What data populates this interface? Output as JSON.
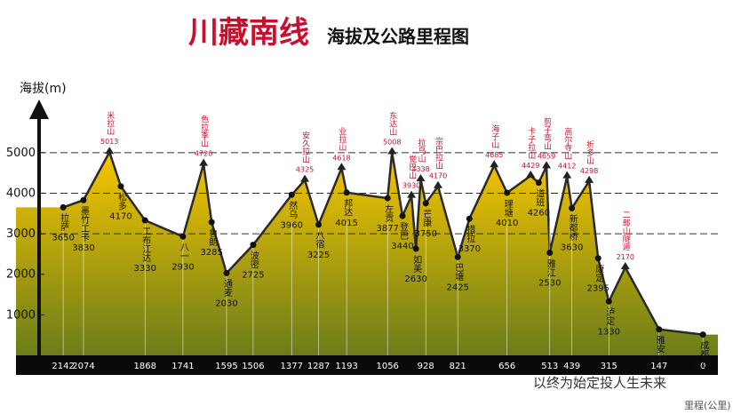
{
  "chart_data": {
    "type": "area",
    "title": "川藏南线",
    "subtitle": "海拔及公路里程图",
    "y_label": "海拔(m)",
    "x_label": "里程(公里)",
    "watermark": "以终为始定投人生未来",
    "ylim": [
      0,
      5500
    ],
    "yticks": [
      1000,
      2000,
      3000,
      4000,
      5000
    ],
    "grid_values": [
      3000,
      4000,
      5000
    ],
    "xlim": [
      2300,
      -50
    ],
    "xticks": [
      2142,
      2074,
      1868,
      1741,
      1595,
      1506,
      1377,
      1287,
      1193,
      1056,
      928,
      821,
      656,
      513,
      439,
      315,
      147,
      0
    ],
    "fill_top": "#f7c600",
    "fill_bottom": "#6b7d1a",
    "peak_color": "#c8102e",
    "labels": [
      "拉萨",
      "墨竹工卡",
      "米拉山",
      "松多",
      "工布江达",
      "八一",
      "色拉季山",
      "鲁朗",
      "通麦",
      "波密",
      "然乌",
      "安久拉山",
      "八宿",
      "业拉山",
      "邦达",
      "左贡",
      "东达山",
      "登巴",
      "觉巴山",
      "如美",
      "拉乌山",
      "芒康",
      "宗巴拉山",
      "巴塘",
      "措拉",
      "海子山",
      "理塘",
      "卡子拉山",
      "道班",
      "剪子弯山",
      "雅江",
      "高尔寺山",
      "新都桥",
      "折多山",
      "康定",
      "泸定",
      "二郎山隧道",
      "雅安",
      "成都"
    ],
    "x": [
      2142,
      2074,
      1987,
      1949,
      1868,
      1741,
      1672,
      1645,
      1595,
      1506,
      1377,
      1333,
      1287,
      1210,
      1193,
      1056,
      1041,
      1006,
      976,
      961,
      945,
      928,
      887,
      821,
      782,
      699,
      656,
      577,
      550,
      524,
      513,
      455,
      439,
      381,
      351,
      315,
      260,
      147,
      0
    ],
    "values": [
      3650,
      3830,
      5013,
      4170,
      3330,
      2930,
      4720,
      3285,
      2030,
      2725,
      3960,
      4325,
      3225,
      4618,
      4015,
      3877,
      5008,
      3440,
      3930,
      2630,
      4338,
      3750,
      4170,
      2425,
      3370,
      4685,
      4010,
      4429,
      4260,
      4659,
      2530,
      4412,
      3630,
      4298,
      2395,
      1330,
      2170,
      641,
      513
    ]
  }
}
